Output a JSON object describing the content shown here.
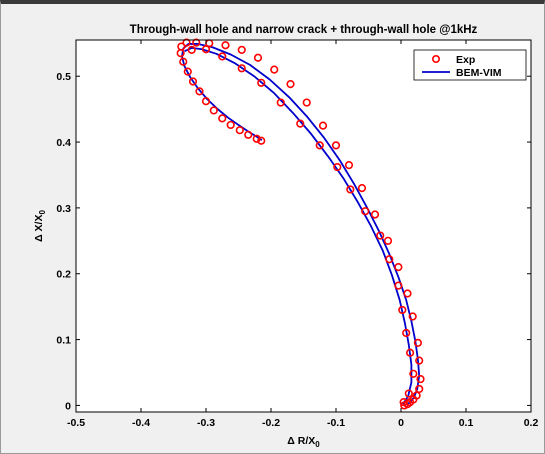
{
  "chart_data": {
    "type": "scatter",
    "title": "Through-wall hole and narrow crack + through-wall hole @1kHz",
    "xlabel_main": "Δ R/X",
    "xlabel_sub": "0",
    "ylabel_main": "Δ X/X",
    "ylabel_sub": "0",
    "xlim": [
      -0.5,
      0.2
    ],
    "ylim": [
      -0.01,
      0.555
    ],
    "x_ticks": [
      -0.5,
      -0.4,
      -0.3,
      -0.2,
      -0.1,
      0,
      0.1,
      0.2
    ],
    "x_tick_labels": [
      "-0.5",
      "-0.4",
      "-0.3",
      "-0.2",
      "-0.1",
      "0",
      "0.1",
      "0.2"
    ],
    "y_ticks": [
      0,
      0.1,
      0.2,
      0.3,
      0.4,
      0.5
    ],
    "y_tick_labels": [
      "0",
      "0.1",
      "0.2",
      "0.3",
      "0.4",
      "0.5"
    ],
    "legend_position": "top-right",
    "legend": [
      {
        "label": "Exp",
        "marker": "circle",
        "color": "#ff0000"
      },
      {
        "label": "BEM-VIM",
        "marker": "line",
        "color": "#0000cc"
      }
    ],
    "series": [
      {
        "name": "Exp",
        "kind": "markers",
        "color": "#ff0000",
        "points": [
          [
            0.005,
            0.0
          ],
          [
            0.01,
            0.002
          ],
          [
            0.014,
            0.005
          ],
          [
            0.019,
            0.009
          ],
          [
            0.024,
            0.015
          ],
          [
            0.028,
            0.025
          ],
          [
            0.03,
            0.04
          ],
          [
            0.028,
            0.068
          ],
          [
            0.026,
            0.095
          ],
          [
            0.018,
            0.135
          ],
          [
            0.01,
            0.17
          ],
          [
            -0.004,
            0.21
          ],
          [
            -0.02,
            0.25
          ],
          [
            -0.04,
            0.29
          ],
          [
            -0.06,
            0.33
          ],
          [
            -0.08,
            0.365
          ],
          [
            -0.1,
            0.395
          ],
          [
            -0.12,
            0.425
          ],
          [
            -0.145,
            0.46
          ],
          [
            -0.17,
            0.488
          ],
          [
            -0.195,
            0.51
          ],
          [
            -0.22,
            0.528
          ],
          [
            -0.245,
            0.54
          ],
          [
            -0.27,
            0.547
          ],
          [
            -0.295,
            0.55
          ],
          [
            -0.315,
            0.551
          ],
          [
            -0.33,
            0.551
          ],
          [
            -0.338,
            0.545
          ],
          [
            -0.339,
            0.535
          ],
          [
            -0.335,
            0.522
          ],
          [
            -0.328,
            0.507
          ],
          [
            -0.32,
            0.492
          ],
          [
            -0.31,
            0.477
          ],
          [
            -0.3,
            0.462
          ],
          [
            -0.288,
            0.448
          ],
          [
            -0.275,
            0.436
          ],
          [
            -0.262,
            0.426
          ],
          [
            -0.248,
            0.418
          ],
          [
            -0.235,
            0.411
          ],
          [
            -0.222,
            0.405
          ],
          [
            -0.215,
            0.402
          ],
          [
            0.004,
            0.005
          ],
          [
            0.012,
            0.018
          ],
          [
            0.019,
            0.048
          ],
          [
            0.014,
            0.08
          ],
          [
            0.008,
            0.11
          ],
          [
            0.002,
            0.145
          ],
          [
            -0.004,
            0.182
          ],
          [
            -0.018,
            0.222
          ],
          [
            -0.032,
            0.258
          ],
          [
            -0.055,
            0.295
          ],
          [
            -0.078,
            0.328
          ],
          [
            -0.098,
            0.362
          ],
          [
            -0.125,
            0.395
          ],
          [
            -0.155,
            0.428
          ],
          [
            -0.185,
            0.46
          ],
          [
            -0.215,
            0.49
          ],
          [
            -0.245,
            0.512
          ],
          [
            -0.275,
            0.53
          ],
          [
            -0.3,
            0.541
          ],
          [
            -0.322,
            0.54
          ]
        ]
      },
      {
        "name": "BEM-VIM",
        "kind": "line",
        "color": "#0000cc",
        "paths": [
          [
            [
              0.005,
              0.0
            ],
            [
              0.013,
              0.004
            ],
            [
              0.02,
              0.012
            ],
            [
              0.025,
              0.025
            ],
            [
              0.028,
              0.045
            ],
            [
              0.026,
              0.07
            ],
            [
              0.022,
              0.098
            ],
            [
              0.016,
              0.128
            ],
            [
              0.008,
              0.16
            ],
            [
              -0.004,
              0.195
            ],
            [
              -0.018,
              0.23
            ],
            [
              -0.034,
              0.265
            ],
            [
              -0.052,
              0.3
            ],
            [
              -0.072,
              0.336
            ],
            [
              -0.094,
              0.372
            ],
            [
              -0.118,
              0.406
            ],
            [
              -0.144,
              0.438
            ],
            [
              -0.172,
              0.468
            ],
            [
              -0.202,
              0.495
            ],
            [
              -0.232,
              0.517
            ],
            [
              -0.262,
              0.533
            ],
            [
              -0.29,
              0.544
            ],
            [
              -0.312,
              0.549
            ],
            [
              -0.327,
              0.549
            ],
            [
              -0.335,
              0.542
            ],
            [
              -0.337,
              0.53
            ],
            [
              -0.333,
              0.515
            ],
            [
              -0.324,
              0.498
            ],
            [
              -0.312,
              0.481
            ],
            [
              -0.298,
              0.465
            ],
            [
              -0.282,
              0.45
            ],
            [
              -0.266,
              0.437
            ],
            [
              -0.25,
              0.426
            ],
            [
              -0.235,
              0.416
            ],
            [
              -0.222,
              0.408
            ],
            [
              -0.214,
              0.403
            ]
          ],
          [
            [
              0.003,
              0.002
            ],
            [
              0.011,
              0.014
            ],
            [
              0.016,
              0.035
            ],
            [
              0.016,
              0.062
            ],
            [
              0.012,
              0.092
            ],
            [
              0.006,
              0.125
            ],
            [
              -0.002,
              0.16
            ],
            [
              -0.014,
              0.198
            ],
            [
              -0.028,
              0.235
            ],
            [
              -0.046,
              0.272
            ],
            [
              -0.066,
              0.308
            ],
            [
              -0.088,
              0.344
            ],
            [
              -0.112,
              0.378
            ],
            [
              -0.138,
              0.412
            ],
            [
              -0.166,
              0.444
            ],
            [
              -0.196,
              0.475
            ],
            [
              -0.226,
              0.5
            ],
            [
              -0.256,
              0.52
            ],
            [
              -0.284,
              0.534
            ],
            [
              -0.306,
              0.541
            ],
            [
              -0.322,
              0.543
            ],
            [
              -0.333,
              0.538
            ]
          ]
        ]
      }
    ]
  }
}
